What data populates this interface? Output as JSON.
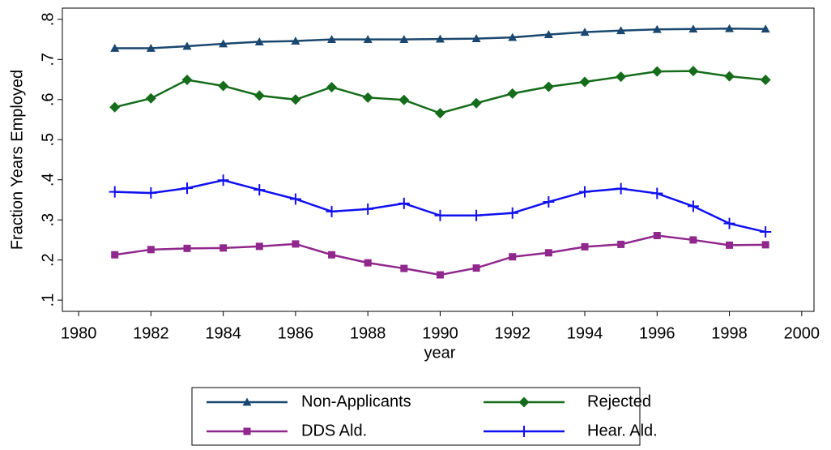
{
  "chart_data": {
    "type": "line",
    "x_label": "year",
    "y_label": "Fraction Years Employed",
    "x": [
      1981,
      1982,
      1983,
      1984,
      1985,
      1986,
      1987,
      1988,
      1989,
      1990,
      1991,
      1992,
      1993,
      1994,
      1995,
      1996,
      1997,
      1998,
      1999
    ],
    "series": [
      {
        "name": "Non-Applicants",
        "color": "#1a476f",
        "marker": "triangle",
        "values": [
          0.728,
          0.728,
          0.733,
          0.739,
          0.744,
          0.746,
          0.75,
          0.75,
          0.75,
          0.751,
          0.752,
          0.755,
          0.762,
          0.768,
          0.772,
          0.775,
          0.776,
          0.777,
          0.776
        ]
      },
      {
        "name": "Rejected",
        "color": "#156c1a",
        "marker": "diamond",
        "values": [
          0.581,
          0.603,
          0.649,
          0.634,
          0.61,
          0.6,
          0.631,
          0.605,
          0.599,
          0.566,
          0.591,
          0.615,
          0.632,
          0.644,
          0.657,
          0.67,
          0.671,
          0.658,
          0.649
        ]
      },
      {
        "name": "DDS Ald.",
        "color": "#90278c",
        "marker": "square",
        "values": [
          0.213,
          0.226,
          0.229,
          0.23,
          0.234,
          0.24,
          0.213,
          0.193,
          0.179,
          0.163,
          0.18,
          0.208,
          0.218,
          0.233,
          0.239,
          0.261,
          0.25,
          0.237,
          0.238
        ]
      },
      {
        "name": "Hear. Ald.",
        "color": "#1010f0",
        "marker": "plus",
        "values": [
          0.37,
          0.367,
          0.379,
          0.399,
          0.375,
          0.352,
          0.321,
          0.327,
          0.341,
          0.311,
          0.311,
          0.317,
          0.345,
          0.37,
          0.378,
          0.366,
          0.334,
          0.291,
          0.27
        ]
      }
    ],
    "xlim": [
      1979.55,
      2000.34
    ],
    "xticks": [
      1980,
      1982,
      1984,
      1986,
      1988,
      1990,
      1992,
      1994,
      1996,
      1998,
      2000
    ],
    "ylim": [
      0.072,
      0.828
    ],
    "yticks": [
      {
        "value": 0.1,
        "label": ".1"
      },
      {
        "value": 0.2,
        "label": ".2"
      },
      {
        "value": 0.3,
        "label": ".3"
      },
      {
        "value": 0.4,
        "label": ".4"
      },
      {
        "value": 0.5,
        "label": ".5"
      },
      {
        "value": 0.6,
        "label": ".6"
      },
      {
        "value": 0.7,
        "label": ".7"
      },
      {
        "value": 0.8,
        "label": ".8"
      }
    ],
    "grid": false,
    "legend": "bottom"
  }
}
